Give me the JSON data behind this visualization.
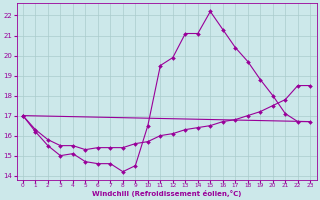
{
  "background_color": "#cce8ea",
  "line_color": "#990099",
  "grid_color": "#aacccc",
  "xlabel": "Windchill (Refroidissement éolien,°C)",
  "ylim": [
    13.8,
    22.6
  ],
  "xlim": [
    -0.5,
    23.5
  ],
  "yticks": [
    14,
    15,
    16,
    17,
    18,
    19,
    20,
    21,
    22
  ],
  "xticks": [
    0,
    1,
    2,
    3,
    4,
    5,
    6,
    7,
    8,
    9,
    10,
    11,
    12,
    13,
    14,
    15,
    16,
    17,
    18,
    19,
    20,
    21,
    22,
    23
  ],
  "series": [
    {
      "x": [
        0,
        1,
        2,
        3,
        4,
        5,
        6,
        7,
        8,
        9,
        10,
        11,
        12,
        13,
        14,
        15,
        16,
        17,
        18,
        19,
        20,
        21,
        22,
        23
      ],
      "y": [
        17.0,
        16.2,
        15.5,
        15.0,
        15.1,
        14.7,
        14.6,
        14.6,
        14.2,
        14.5,
        16.5,
        19.5,
        19.9,
        21.1,
        21.1,
        22.2,
        21.3,
        20.4,
        19.7,
        18.8,
        18.0,
        17.1,
        16.7,
        16.7
      ],
      "has_markers": true
    },
    {
      "x": [
        0,
        1,
        2,
        3,
        4,
        5,
        6,
        7,
        8,
        9,
        10,
        11,
        12,
        13,
        14,
        15,
        16,
        17,
        18,
        19,
        20,
        21,
        22,
        23
      ],
      "y": [
        17.0,
        16.3,
        15.8,
        15.5,
        15.5,
        15.3,
        15.4,
        15.4,
        15.4,
        15.6,
        15.7,
        16.0,
        16.1,
        16.3,
        16.4,
        16.5,
        16.7,
        16.8,
        17.0,
        17.2,
        17.5,
        17.8,
        18.5,
        18.5
      ],
      "has_markers": true
    },
    {
      "x": [
        0,
        23
      ],
      "y": [
        17.0,
        16.7
      ],
      "has_markers": false
    }
  ]
}
